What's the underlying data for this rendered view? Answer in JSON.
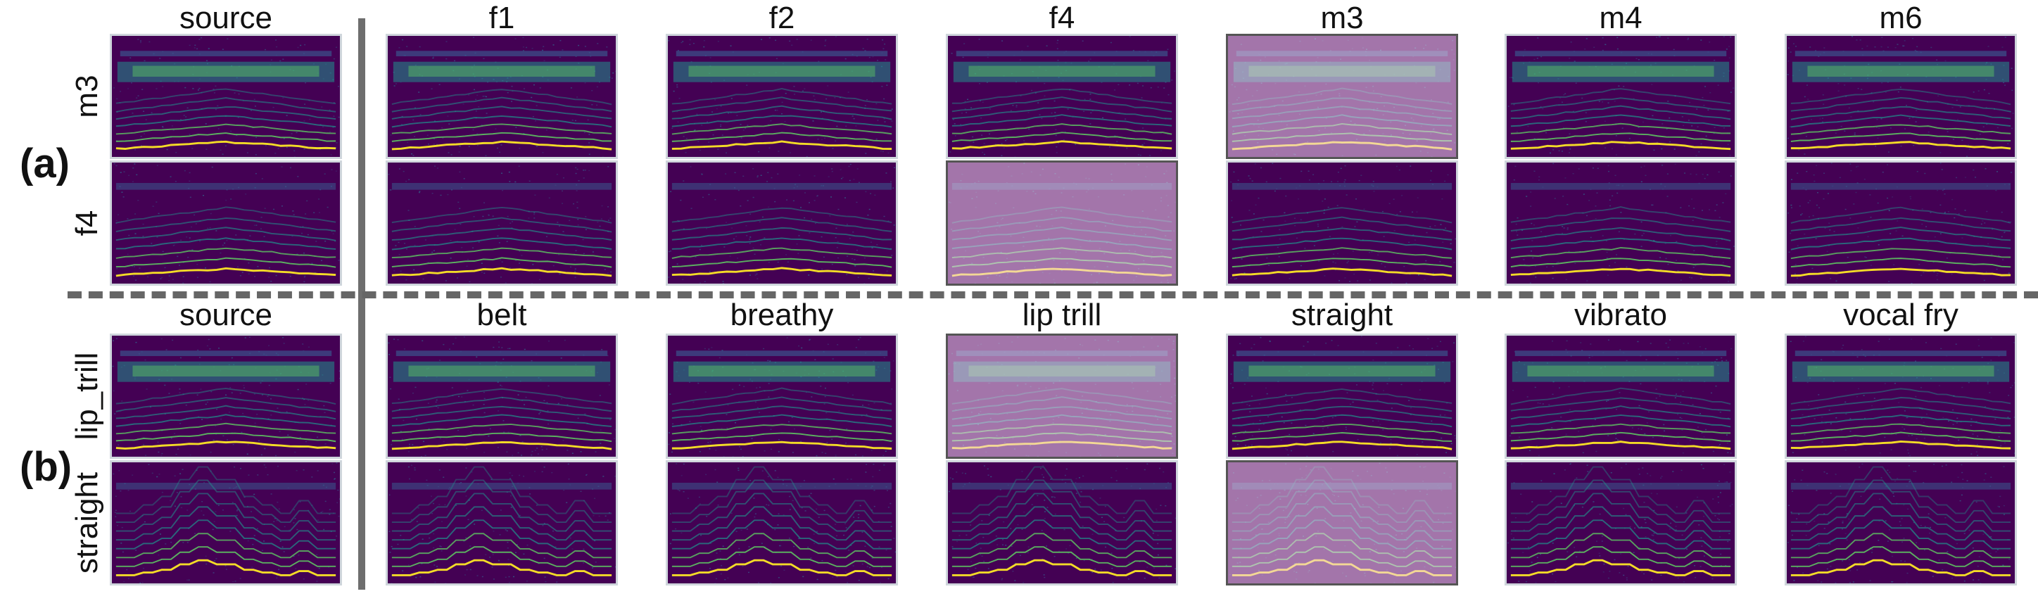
{
  "panels": [
    {
      "label": "(a)",
      "source_title": "source",
      "conversion_titles": [
        "f1",
        "f2",
        "f4",
        "m3",
        "m4",
        "m6"
      ],
      "rows": [
        {
          "label": "m3",
          "style": "band",
          "highlight_column": 3
        },
        {
          "label": "f4",
          "style": "low",
          "highlight_column": 2
        }
      ]
    },
    {
      "label": "(b)",
      "source_title": "source",
      "conversion_titles": [
        "belt",
        "breathy",
        "lip trill",
        "straight",
        "vibrato",
        "vocal fry"
      ],
      "rows": [
        {
          "label": "lip_trill",
          "style": "band",
          "highlight_column": 2
        },
        {
          "label": "straight",
          "style": "pitch",
          "highlight_column": 3
        }
      ]
    }
  ],
  "colors": {
    "background": "#440154",
    "viridis_dark": "#3b528b",
    "viridis_mid": "#21918c",
    "viridis_light": "#5ec962",
    "viridis_bright": "#fde725",
    "highlight_overlay": "#f3d6f0",
    "divider": "#6e6e6e"
  }
}
